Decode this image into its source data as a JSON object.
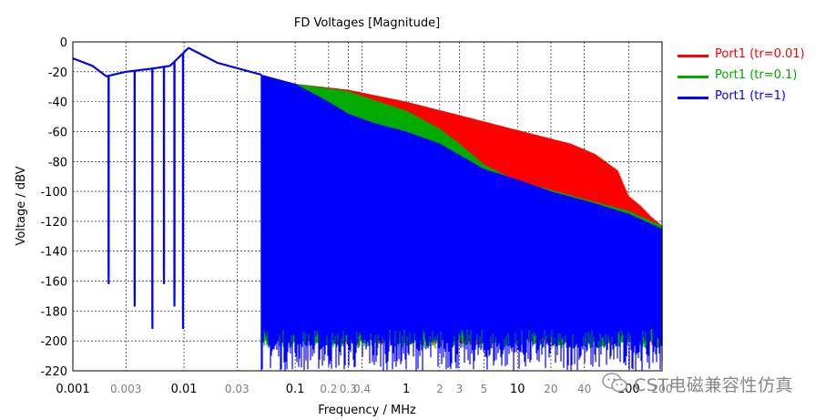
{
  "chart_data": {
    "type": "line",
    "title": "FD Voltages [Magnitude]",
    "xlabel": "Frequency / MHz",
    "ylabel": "Voltage / dBV",
    "x_scale": "log",
    "xlim": [
      0.001,
      200
    ],
    "ylim": [
      -220,
      0
    ],
    "grid": true,
    "legend_position": "right",
    "x_ticks": [
      {
        "v": 0.001,
        "label": "0.001",
        "major": true
      },
      {
        "v": 0.003,
        "label": "0.003",
        "major": false
      },
      {
        "v": 0.01,
        "label": "0.01",
        "major": true
      },
      {
        "v": 0.03,
        "label": "0.03",
        "major": false
      },
      {
        "v": 0.1,
        "label": "0.1",
        "major": true
      },
      {
        "v": 0.2,
        "label": "0.2",
        "major": false
      },
      {
        "v": 0.3,
        "label": "0.3",
        "major": false
      },
      {
        "v": 0.4,
        "label": "0.4",
        "major": false
      },
      {
        "v": 1,
        "label": "1",
        "major": true
      },
      {
        "v": 2,
        "label": "2",
        "major": false
      },
      {
        "v": 3,
        "label": "3",
        "major": false
      },
      {
        "v": 5,
        "label": "5",
        "major": false
      },
      {
        "v": 10,
        "label": "10",
        "major": true
      },
      {
        "v": 20,
        "label": "20",
        "major": false
      },
      {
        "v": 40,
        "label": "40",
        "major": false
      },
      {
        "v": 100,
        "label": "100",
        "major": true
      },
      {
        "v": 200,
        "label": "200",
        "major": false
      }
    ],
    "y_ticks": [
      0,
      -20,
      -40,
      -60,
      -80,
      -100,
      -120,
      -140,
      -160,
      -180,
      -200,
      -220
    ],
    "series": [
      {
        "name": "Port1 (tr=0.01)",
        "color": "#ff0000",
        "envelope_x": [
          0.001,
          0.0015,
          0.002,
          0.003,
          0.005,
          0.0075,
          0.011,
          0.02,
          0.05,
          0.1,
          0.3,
          1,
          3,
          10,
          30,
          50,
          80,
          100,
          130,
          160,
          200
        ],
        "envelope_y": [
          -11,
          -16,
          -23,
          -20,
          -18,
          -16,
          -4,
          -14,
          -22,
          -28,
          -32,
          -40,
          -49,
          -59,
          -68,
          -75,
          -86,
          -103,
          -110,
          -117,
          -123
        ],
        "floor_start": 0.05,
        "floor_y": -203
      },
      {
        "name": "Port1 (tr=0.1)",
        "color": "#00aa00",
        "envelope_x": [
          0.001,
          0.0015,
          0.002,
          0.003,
          0.005,
          0.0075,
          0.011,
          0.02,
          0.05,
          0.1,
          0.3,
          1,
          2,
          3,
          5,
          10,
          20,
          50,
          100,
          200
        ],
        "envelope_y": [
          -11,
          -16,
          -23,
          -20,
          -18,
          -16,
          -4,
          -14,
          -22,
          -28,
          -33,
          -46,
          -58,
          -68,
          -82,
          -93,
          -99,
          -107,
          -113,
          -123
        ],
        "floor_start": 0.05,
        "floor_y": -205
      },
      {
        "name": "Port1 (tr=1)",
        "color": "#0000ff",
        "envelope_x": [
          0.001,
          0.0015,
          0.002,
          0.003,
          0.005,
          0.0075,
          0.011,
          0.02,
          0.05,
          0.1,
          0.2,
          0.3,
          0.5,
          1,
          2,
          5,
          10,
          20,
          50,
          100,
          200
        ],
        "envelope_y": [
          -11,
          -16,
          -23,
          -20,
          -18,
          -16,
          -4,
          -14,
          -22,
          -28,
          -40,
          -48,
          -54,
          -60,
          -68,
          -85,
          -92,
          -100,
          -108,
          -115,
          -125
        ],
        "floor_start": 0.05,
        "floor_y": -220
      }
    ]
  },
  "watermark": {
    "text": "CST电磁兼容性仿真"
  }
}
